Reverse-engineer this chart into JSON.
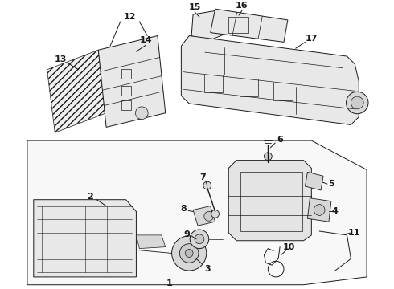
{
  "background_color": "#ffffff",
  "line_color": "#1a1a1a",
  "fig_width": 4.9,
  "fig_height": 3.6,
  "dpi": 100,
  "label_fontsize": 7.5,
  "lw": 0.7
}
